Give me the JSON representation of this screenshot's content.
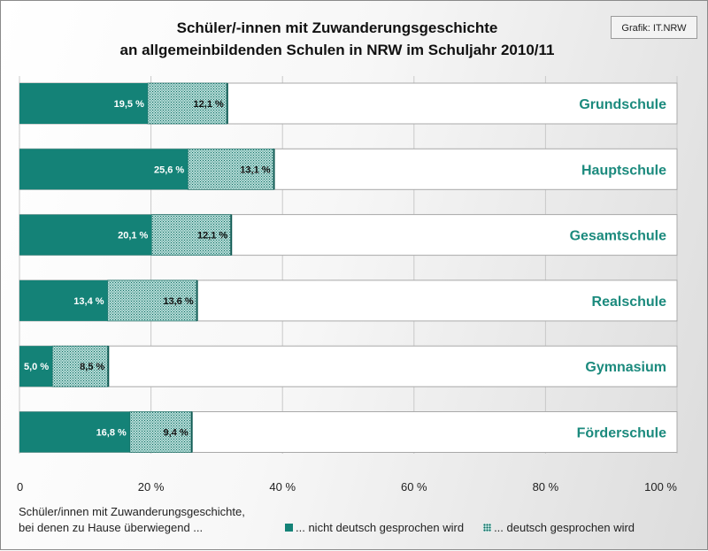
{
  "title_line1": "Schüler/-innen mit Zuwanderungsgeschichte",
  "title_line2": "an allgemeinbildenden Schulen in NRW im Schuljahr 2010/11",
  "source": "Grafik: IT.NRW",
  "legend": {
    "description_line1": "Schüler/innen mit Zuwanderungsgeschichte,",
    "description_line2": "bei denen zu Hause überwiegend ...",
    "item1": "... nicht deutsch gesprochen wird",
    "item2": "... deutsch gesprochen wird"
  },
  "colors": {
    "solid": "#148277",
    "hatch_bg": "#b6ddd8",
    "hatch_dot": "#0f6b62",
    "category_text": "#1b8a7d"
  },
  "chart_data": {
    "type": "bar",
    "orientation": "horizontal",
    "stacked": true,
    "categories": [
      "Grundschule",
      "Hauptschule",
      "Gesamtschule",
      "Realschule",
      "Gymnasium",
      "Förderschule"
    ],
    "series": [
      {
        "name": "... nicht deutsch gesprochen wird",
        "values": [
          19.5,
          25.6,
          20.1,
          13.4,
          5.0,
          16.8
        ],
        "labels": [
          "19,5 %",
          "25,6 %",
          "20,1 %",
          "13,4 %",
          "5,0 %",
          "16,8 %"
        ]
      },
      {
        "name": "... deutsch gesprochen wird",
        "values": [
          12.1,
          13.1,
          12.1,
          13.6,
          8.5,
          9.4
        ],
        "labels": [
          "12,1 %",
          "13,1 %",
          "12,1 %",
          "13,6 %",
          "8,5 %",
          "9,4 %"
        ]
      }
    ],
    "xlim": [
      0,
      100
    ],
    "xticks": [
      0,
      20,
      40,
      60,
      80,
      100
    ],
    "xtick_labels": [
      "0",
      "20 %",
      "40 %",
      "60 %",
      "80 %",
      "100 %"
    ],
    "grid": true,
    "legend_position": "bottom"
  }
}
